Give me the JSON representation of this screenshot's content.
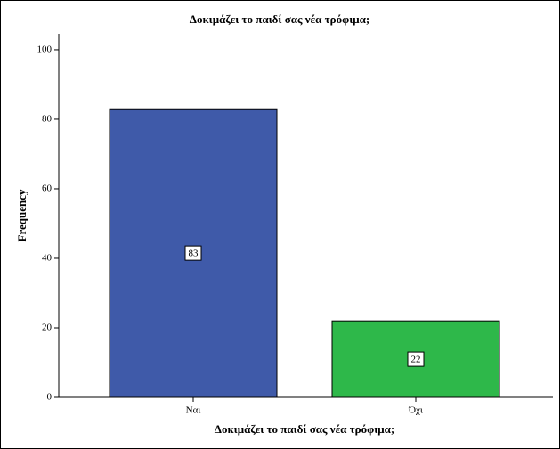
{
  "chart_data": {
    "type": "bar",
    "title": "Δοκιμάζει το παιδί σας νέα τρόφιμα;",
    "x_label": "Δοκιμάζει το παιδί σας νέα τρόφιμα;",
    "y_label": "Frequency",
    "categories": [
      "Ναι",
      "Όχι"
    ],
    "values": [
      83,
      22
    ],
    "colors": [
      "#3f5aa9",
      "#2eb84a"
    ],
    "ylim": [
      0,
      104.6
    ],
    "yticks": [
      0,
      20,
      40,
      60,
      80,
      100
    ]
  }
}
